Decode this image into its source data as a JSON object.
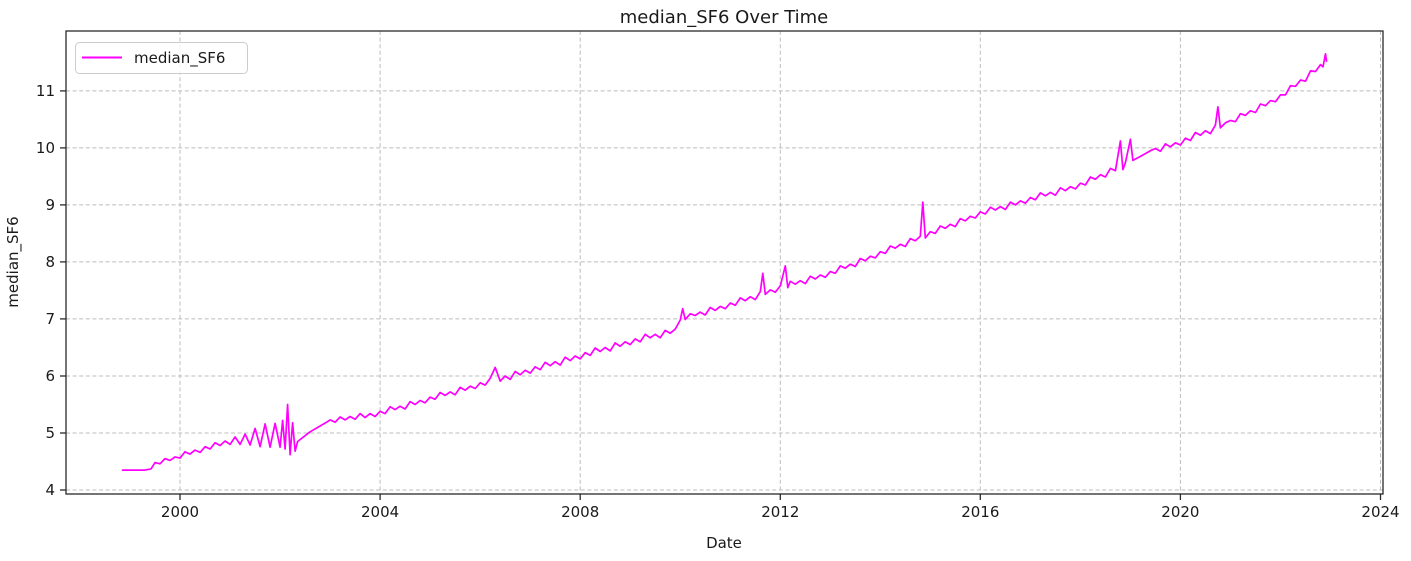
{
  "figure": {
    "background_color": "#ffffff",
    "text_color": "#1a1a1a"
  },
  "chart_data": {
    "type": "line",
    "title": "median_SF6 Over Time",
    "xlabel": "Date",
    "ylabel": "median_SF6",
    "grid": true,
    "grid_style": "dashed",
    "grid_color": "#bcbcbc",
    "spine_color": "#2a2a2a",
    "line_color": "#ff00ff",
    "line_width": 1.7,
    "xlim": [
      1997.72,
      2024.05
    ],
    "ylim": [
      3.93,
      12.05
    ],
    "xticks": [
      2000,
      2004,
      2008,
      2012,
      2016,
      2020,
      2024
    ],
    "yticks": [
      4,
      5,
      6,
      7,
      8,
      9,
      10,
      11
    ],
    "x_units": "year",
    "legend": {
      "position": "upper-left",
      "entries": [
        {
          "label": "median_SF6",
          "color": "#ff00ff"
        }
      ]
    },
    "series": [
      {
        "name": "median_SF6",
        "color": "#ff00ff",
        "points": [
          [
            1998.85,
            4.35
          ],
          [
            1999.0,
            4.35
          ],
          [
            1999.15,
            4.35
          ],
          [
            1999.3,
            4.35
          ],
          [
            1999.42,
            4.37
          ],
          [
            1999.5,
            4.48
          ],
          [
            1999.6,
            4.46
          ],
          [
            1999.7,
            4.55
          ],
          [
            1999.8,
            4.52
          ],
          [
            1999.9,
            4.58
          ],
          [
            2000.0,
            4.56
          ],
          [
            2000.1,
            4.67
          ],
          [
            2000.2,
            4.63
          ],
          [
            2000.3,
            4.7
          ],
          [
            2000.4,
            4.66
          ],
          [
            2000.5,
            4.76
          ],
          [
            2000.6,
            4.72
          ],
          [
            2000.7,
            4.83
          ],
          [
            2000.8,
            4.78
          ],
          [
            2000.9,
            4.86
          ],
          [
            2001.0,
            4.8
          ],
          [
            2001.1,
            4.93
          ],
          [
            2001.2,
            4.8
          ],
          [
            2001.3,
            4.98
          ],
          [
            2001.4,
            4.79
          ],
          [
            2001.5,
            5.08
          ],
          [
            2001.6,
            4.76
          ],
          [
            2001.7,
            5.16
          ],
          [
            2001.8,
            4.75
          ],
          [
            2001.9,
            5.17
          ],
          [
            2002.0,
            4.75
          ],
          [
            2002.05,
            5.22
          ],
          [
            2002.1,
            4.72
          ],
          [
            2002.15,
            5.5
          ],
          [
            2002.2,
            4.62
          ],
          [
            2002.25,
            5.18
          ],
          [
            2002.3,
            4.68
          ],
          [
            2002.35,
            4.85
          ],
          [
            2002.6,
            5.02
          ],
          [
            2002.95,
            5.2
          ],
          [
            2003.0,
            5.23
          ],
          [
            2003.1,
            5.19
          ],
          [
            2003.2,
            5.28
          ],
          [
            2003.3,
            5.23
          ],
          [
            2003.4,
            5.29
          ],
          [
            2003.5,
            5.24
          ],
          [
            2003.6,
            5.34
          ],
          [
            2003.7,
            5.27
          ],
          [
            2003.8,
            5.34
          ],
          [
            2003.9,
            5.29
          ],
          [
            2004.0,
            5.38
          ],
          [
            2004.1,
            5.34
          ],
          [
            2004.2,
            5.46
          ],
          [
            2004.3,
            5.41
          ],
          [
            2004.4,
            5.47
          ],
          [
            2004.5,
            5.42
          ],
          [
            2004.6,
            5.55
          ],
          [
            2004.7,
            5.5
          ],
          [
            2004.8,
            5.57
          ],
          [
            2004.9,
            5.53
          ],
          [
            2005.0,
            5.63
          ],
          [
            2005.1,
            5.59
          ],
          [
            2005.2,
            5.71
          ],
          [
            2005.3,
            5.66
          ],
          [
            2005.4,
            5.72
          ],
          [
            2005.5,
            5.67
          ],
          [
            2005.6,
            5.8
          ],
          [
            2005.7,
            5.75
          ],
          [
            2005.8,
            5.82
          ],
          [
            2005.9,
            5.78
          ],
          [
            2006.0,
            5.88
          ],
          [
            2006.1,
            5.84
          ],
          [
            2006.2,
            5.96
          ],
          [
            2006.3,
            6.15
          ],
          [
            2006.4,
            5.91
          ],
          [
            2006.5,
            6.0
          ],
          [
            2006.6,
            5.94
          ],
          [
            2006.7,
            6.08
          ],
          [
            2006.8,
            6.02
          ],
          [
            2006.9,
            6.1
          ],
          [
            2007.0,
            6.05
          ],
          [
            2007.1,
            6.16
          ],
          [
            2007.2,
            6.11
          ],
          [
            2007.3,
            6.24
          ],
          [
            2007.4,
            6.18
          ],
          [
            2007.5,
            6.25
          ],
          [
            2007.6,
            6.19
          ],
          [
            2007.7,
            6.33
          ],
          [
            2007.8,
            6.27
          ],
          [
            2007.9,
            6.35
          ],
          [
            2008.0,
            6.3
          ],
          [
            2008.1,
            6.41
          ],
          [
            2008.2,
            6.36
          ],
          [
            2008.3,
            6.49
          ],
          [
            2008.4,
            6.43
          ],
          [
            2008.5,
            6.5
          ],
          [
            2008.6,
            6.44
          ],
          [
            2008.7,
            6.58
          ],
          [
            2008.8,
            6.52
          ],
          [
            2008.9,
            6.6
          ],
          [
            2009.0,
            6.55
          ],
          [
            2009.1,
            6.65
          ],
          [
            2009.2,
            6.6
          ],
          [
            2009.3,
            6.73
          ],
          [
            2009.4,
            6.67
          ],
          [
            2009.5,
            6.73
          ],
          [
            2009.6,
            6.67
          ],
          [
            2009.7,
            6.8
          ],
          [
            2009.8,
            6.75
          ],
          [
            2009.9,
            6.82
          ],
          [
            2010.0,
            6.98
          ],
          [
            2010.05,
            7.18
          ],
          [
            2010.1,
            6.99
          ],
          [
            2010.2,
            7.09
          ],
          [
            2010.3,
            7.06
          ],
          [
            2010.4,
            7.12
          ],
          [
            2010.5,
            7.07
          ],
          [
            2010.6,
            7.2
          ],
          [
            2010.7,
            7.15
          ],
          [
            2010.8,
            7.22
          ],
          [
            2010.9,
            7.18
          ],
          [
            2011.0,
            7.28
          ],
          [
            2011.1,
            7.24
          ],
          [
            2011.2,
            7.37
          ],
          [
            2011.3,
            7.32
          ],
          [
            2011.4,
            7.39
          ],
          [
            2011.5,
            7.34
          ],
          [
            2011.6,
            7.48
          ],
          [
            2011.65,
            7.8
          ],
          [
            2011.7,
            7.43
          ],
          [
            2011.8,
            7.51
          ],
          [
            2011.9,
            7.47
          ],
          [
            2012.0,
            7.58
          ],
          [
            2012.1,
            7.93
          ],
          [
            2012.15,
            7.55
          ],
          [
            2012.2,
            7.66
          ],
          [
            2012.3,
            7.61
          ],
          [
            2012.4,
            7.67
          ],
          [
            2012.5,
            7.62
          ],
          [
            2012.6,
            7.75
          ],
          [
            2012.7,
            7.7
          ],
          [
            2012.8,
            7.77
          ],
          [
            2012.9,
            7.73
          ],
          [
            2013.0,
            7.83
          ],
          [
            2013.1,
            7.8
          ],
          [
            2013.2,
            7.93
          ],
          [
            2013.3,
            7.89
          ],
          [
            2013.4,
            7.96
          ],
          [
            2013.5,
            7.92
          ],
          [
            2013.6,
            8.06
          ],
          [
            2013.7,
            8.02
          ],
          [
            2013.8,
            8.1
          ],
          [
            2013.9,
            8.07
          ],
          [
            2014.0,
            8.18
          ],
          [
            2014.1,
            8.15
          ],
          [
            2014.2,
            8.28
          ],
          [
            2014.3,
            8.24
          ],
          [
            2014.4,
            8.31
          ],
          [
            2014.5,
            8.27
          ],
          [
            2014.6,
            8.41
          ],
          [
            2014.7,
            8.37
          ],
          [
            2014.8,
            8.45
          ],
          [
            2014.85,
            9.05
          ],
          [
            2014.9,
            8.42
          ],
          [
            2015.0,
            8.53
          ],
          [
            2015.1,
            8.5
          ],
          [
            2015.2,
            8.63
          ],
          [
            2015.3,
            8.59
          ],
          [
            2015.4,
            8.66
          ],
          [
            2015.5,
            8.62
          ],
          [
            2015.6,
            8.76
          ],
          [
            2015.7,
            8.72
          ],
          [
            2015.8,
            8.8
          ],
          [
            2015.9,
            8.77
          ],
          [
            2016.0,
            8.88
          ],
          [
            2016.1,
            8.84
          ],
          [
            2016.2,
            8.96
          ],
          [
            2016.3,
            8.91
          ],
          [
            2016.4,
            8.97
          ],
          [
            2016.5,
            8.92
          ],
          [
            2016.6,
            9.05
          ],
          [
            2016.7,
            9.0
          ],
          [
            2016.8,
            9.07
          ],
          [
            2016.9,
            9.03
          ],
          [
            2017.0,
            9.13
          ],
          [
            2017.1,
            9.09
          ],
          [
            2017.2,
            9.21
          ],
          [
            2017.3,
            9.16
          ],
          [
            2017.4,
            9.22
          ],
          [
            2017.5,
            9.17
          ],
          [
            2017.6,
            9.3
          ],
          [
            2017.7,
            9.25
          ],
          [
            2017.8,
            9.32
          ],
          [
            2017.9,
            9.28
          ],
          [
            2018.0,
            9.38
          ],
          [
            2018.1,
            9.35
          ],
          [
            2018.2,
            9.49
          ],
          [
            2018.3,
            9.45
          ],
          [
            2018.4,
            9.53
          ],
          [
            2018.5,
            9.49
          ],
          [
            2018.6,
            9.64
          ],
          [
            2018.7,
            9.6
          ],
          [
            2018.8,
            10.12
          ],
          [
            2018.85,
            9.62
          ],
          [
            2018.9,
            9.74
          ],
          [
            2019.0,
            10.15
          ],
          [
            2019.05,
            9.78
          ],
          [
            2019.2,
            9.85
          ],
          [
            2019.4,
            9.95
          ],
          [
            2019.5,
            9.99
          ],
          [
            2019.6,
            9.94
          ],
          [
            2019.7,
            10.07
          ],
          [
            2019.8,
            10.02
          ],
          [
            2019.9,
            10.09
          ],
          [
            2020.0,
            10.05
          ],
          [
            2020.1,
            10.17
          ],
          [
            2020.2,
            10.13
          ],
          [
            2020.3,
            10.27
          ],
          [
            2020.4,
            10.22
          ],
          [
            2020.5,
            10.3
          ],
          [
            2020.6,
            10.25
          ],
          [
            2020.7,
            10.4
          ],
          [
            2020.75,
            10.72
          ],
          [
            2020.8,
            10.35
          ],
          [
            2020.9,
            10.44
          ],
          [
            2021.0,
            10.48
          ],
          [
            2021.1,
            10.46
          ],
          [
            2021.2,
            10.6
          ],
          [
            2021.3,
            10.57
          ],
          [
            2021.4,
            10.65
          ],
          [
            2021.5,
            10.62
          ],
          [
            2021.6,
            10.77
          ],
          [
            2021.7,
            10.74
          ],
          [
            2021.8,
            10.83
          ],
          [
            2021.9,
            10.81
          ],
          [
            2022.0,
            10.93
          ],
          [
            2022.1,
            10.93
          ],
          [
            2022.2,
            11.09
          ],
          [
            2022.3,
            11.08
          ],
          [
            2022.4,
            11.19
          ],
          [
            2022.5,
            11.17
          ],
          [
            2022.6,
            11.35
          ],
          [
            2022.7,
            11.34
          ],
          [
            2022.8,
            11.46
          ],
          [
            2022.85,
            11.42
          ],
          [
            2022.9,
            11.65
          ],
          [
            2022.92,
            11.52
          ]
        ]
      }
    ]
  }
}
